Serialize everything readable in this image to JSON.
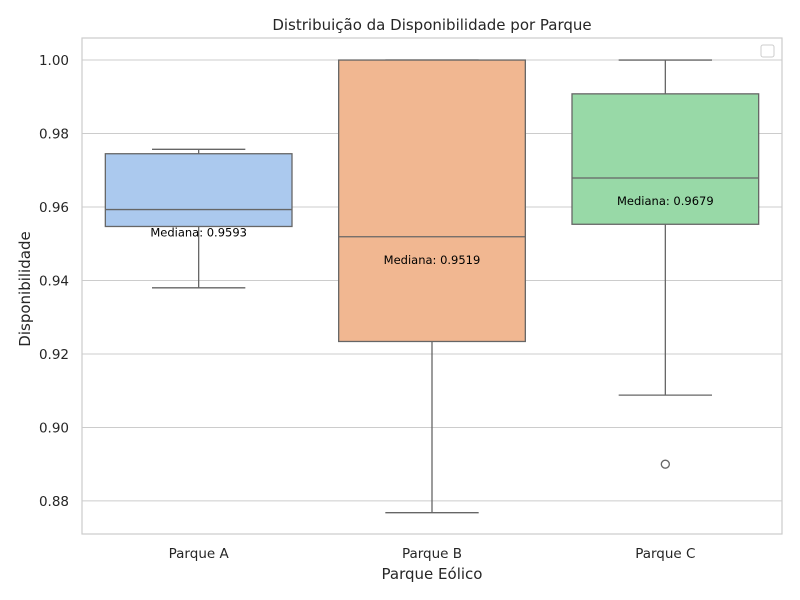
{
  "chart_data": {
    "type": "box",
    "title": "Distribuição da Disponibilidade por Parque",
    "xlabel": "Parque Eólico",
    "ylabel": "Disponibilidade",
    "ylim": [
      0.871,
      1.006
    ],
    "yticks": [
      0.88,
      0.9,
      0.92,
      0.94,
      0.96,
      0.98,
      1.0
    ],
    "ytick_labels": [
      "0.88",
      "0.90",
      "0.92",
      "0.94",
      "0.96",
      "0.98",
      "1.00"
    ],
    "grid": true,
    "legend": "top-right",
    "categories": [
      "Parque A",
      "Parque B",
      "Parque C"
    ],
    "boxes": [
      {
        "category": "Parque A",
        "whisker_low": 0.938,
        "q1": 0.9547,
        "median": 0.9593,
        "q3": 0.9745,
        "whisker_high": 0.9757,
        "outliers": [],
        "color": "#abc9ee",
        "annotation": "Mediana: 0.9593"
      },
      {
        "category": "Parque B",
        "whisker_low": 0.8768,
        "q1": 0.9234,
        "median": 0.9519,
        "q3": 1.0,
        "whisker_high": 1.0,
        "outliers": [],
        "color": "#f1b791",
        "annotation": "Mediana: 0.9519"
      },
      {
        "category": "Parque C",
        "whisker_low": 0.9088,
        "q1": 0.9553,
        "median": 0.9679,
        "q3": 0.9908,
        "whisker_high": 1.0,
        "outliers": [
          0.89
        ],
        "color": "#98d9a7",
        "annotation": "Mediana: 0.9679"
      }
    ]
  }
}
